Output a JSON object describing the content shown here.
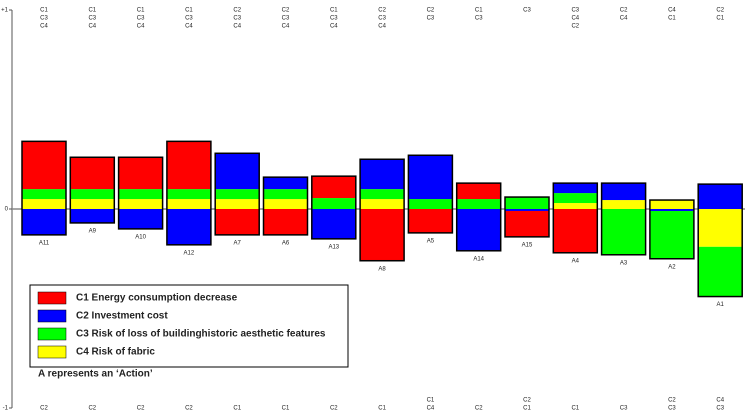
{
  "chart_data": {
    "type": "bar",
    "stacked": true,
    "categories": [
      "A11",
      "A9",
      "A10",
      "A12",
      "A7",
      "A6",
      "A13",
      "A8",
      "A5",
      "A14",
      "A15",
      "A4",
      "A3",
      "A2",
      "A1"
    ],
    "series": [
      {
        "name": "C1 Energy consumption decrease",
        "color": "#ff0000",
        "values": [
          0.24,
          0.16,
          0.16,
          0.24,
          -0.13,
          -0.13,
          0.11,
          -0.26,
          -0.12,
          0.08,
          -0.13,
          -0.22,
          0,
          0,
          0
        ]
      },
      {
        "name": "C2 Investment cost",
        "color": "#0000ff",
        "values": [
          -0.13,
          -0.07,
          -0.1,
          -0.18,
          0.18,
          0.06,
          -0.15,
          0.15,
          0.22,
          -0.21,
          -0.01,
          0.05,
          0.085,
          -0.01,
          0.125
        ]
      },
      {
        "name": "C3 Risk of loss of buildinghistoric aesthetic features",
        "color": "#00ff00",
        "values": [
          0.05,
          0.05,
          0.05,
          0.05,
          0.05,
          0.05,
          0.055,
          0.05,
          0.05,
          0.05,
          0.06,
          0.05,
          -0.23,
          -0.24,
          -0.25
        ]
      },
      {
        "name": "C4 Risk of fabric",
        "color": "#ffff00",
        "values": [
          0.05,
          0.05,
          0.05,
          0.05,
          0.05,
          0.05,
          0,
          0.05,
          0,
          0,
          0,
          0.03,
          0.045,
          0.045,
          -0.19
        ]
      }
    ],
    "top_labels": [
      [
        "C1",
        "C3",
        "C4"
      ],
      [
        "C1",
        "C3",
        "C4"
      ],
      [
        "C1",
        "C3",
        "C4"
      ],
      [
        "C1",
        "C3",
        "C4"
      ],
      [
        "C2",
        "C3",
        "C4"
      ],
      [
        "C2",
        "C3",
        "C4"
      ],
      [
        "C1",
        "C3",
        "C4"
      ],
      [
        "C2",
        "C3",
        "C4"
      ],
      [
        "C2",
        "C3"
      ],
      [
        "C1",
        "C3"
      ],
      [
        "C3"
      ],
      [
        "C3",
        "C4",
        "C2"
      ],
      [
        "C2",
        "C4"
      ],
      [
        "C4",
        "C1"
      ],
      [
        "C2",
        "C1"
      ]
    ],
    "bottom_labels": [
      [
        "C2"
      ],
      [
        "C2"
      ],
      [
        "C2"
      ],
      [
        "C2"
      ],
      [
        "C1"
      ],
      [
        "C1"
      ],
      [
        "C2"
      ],
      [
        "C1"
      ],
      [
        "C1",
        "C4"
      ],
      [
        "C2"
      ],
      [
        "C2",
        "C1"
      ],
      [
        "C1"
      ],
      [
        "C3"
      ],
      [
        "C2",
        "C3"
      ],
      [
        "C4",
        "C3"
      ]
    ],
    "ylim": [
      -1,
      1
    ],
    "yticks": [
      {
        "value": 1,
        "label": "+1"
      },
      0,
      {
        "value": -1,
        "label": "-1"
      }
    ],
    "note": "A represents an ‘Action’"
  }
}
